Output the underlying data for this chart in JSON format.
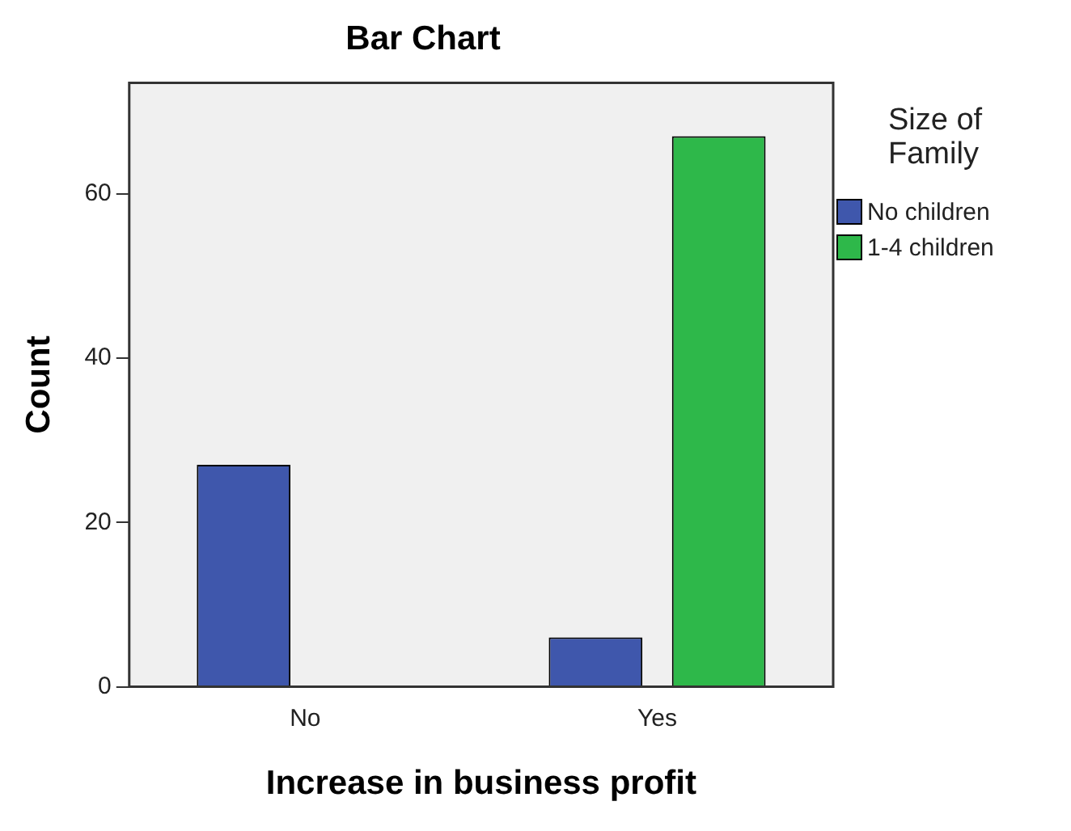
{
  "chart_data": {
    "type": "bar",
    "title": "Bar Chart",
    "xlabel": "Increase in business profit",
    "ylabel": "Count",
    "legend_title": "Size of Family",
    "categories": [
      "No",
      "Yes"
    ],
    "series": [
      {
        "name": "No children",
        "color": "#3f57ac",
        "values": [
          27,
          6
        ]
      },
      {
        "name": "1-4 children",
        "color": "#2eb84a",
        "values": [
          0,
          67
        ]
      }
    ],
    "ylim": [
      0,
      73.5
    ],
    "yticks": [
      0,
      20,
      40,
      60
    ],
    "grid": false,
    "legend": "right"
  }
}
